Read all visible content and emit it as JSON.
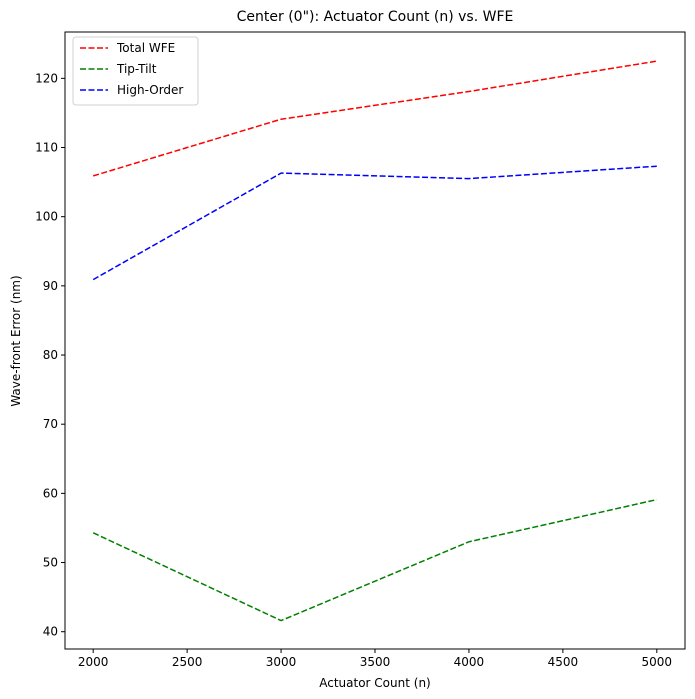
{
  "chart_data": {
    "type": "line",
    "title": "Center (0\"): Actuator Count (n) vs. WFE",
    "xlabel": "Actuator Count (n)",
    "ylabel": "Wave-front Error (nm)",
    "x": [
      2000,
      3000,
      4000,
      5000
    ],
    "xlim": [
      1850,
      5150
    ],
    "ylim": [
      37.5,
      126.7
    ],
    "xticks": [
      2000,
      2500,
      3000,
      3500,
      4000,
      4500,
      5000
    ],
    "yticks": [
      40,
      50,
      60,
      70,
      80,
      90,
      100,
      110,
      120
    ],
    "grid": false,
    "legend_position": "top-left",
    "line_style": "dashed",
    "series": [
      {
        "name": "Total WFE",
        "color": "#ff0000",
        "values": [
          105.9,
          114.1,
          118.1,
          122.5
        ]
      },
      {
        "name": "Tip-Tilt",
        "color": "#008000",
        "values": [
          54.3,
          41.6,
          53.0,
          59.1
        ]
      },
      {
        "name": "High-Order",
        "color": "#0000ff",
        "values": [
          90.9,
          106.3,
          105.5,
          107.3
        ]
      }
    ]
  }
}
